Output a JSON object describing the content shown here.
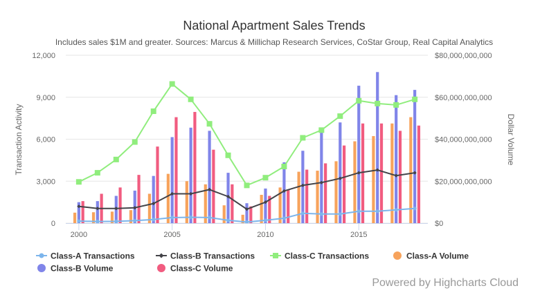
{
  "chart_data": {
    "type": "bar",
    "title": "National Apartment Sales Trends",
    "subtitle": "Includes sales $1M and greater. Sources: Marcus & Millichap Research Services, CoStar Group, Real Capital Analytics",
    "x": [
      2000,
      2001,
      2002,
      2003,
      2004,
      2005,
      2006,
      2007,
      2008,
      2009,
      2010,
      2011,
      2012,
      2013,
      2014,
      2015,
      2016,
      2017,
      2018
    ],
    "x_ticks": [
      "2000",
      "2005",
      "2010",
      "2015"
    ],
    "x_tick_values": [
      2000,
      2005,
      2010,
      2015
    ],
    "xlim": [
      1999.3,
      2018.7
    ],
    "y_left": {
      "label": "Transaction Activity",
      "ylim": [
        0,
        12000
      ],
      "ticks": [
        0,
        3000,
        6000,
        9000,
        12000
      ],
      "tick_labels": [
        "0",
        "3,000",
        "6,000",
        "9,000",
        "12,000"
      ]
    },
    "y_right": {
      "label": "Dollar Volume",
      "ylim": [
        0,
        80000000000
      ],
      "ticks": [
        0,
        20000000000,
        40000000000,
        60000000000,
        80000000000
      ],
      "tick_labels": [
        "$0",
        "$20,000,000,000",
        "$40,000,000,000",
        "$60,000,000,000",
        "$80,000,000,000"
      ]
    },
    "series": [
      {
        "name": "Class-A Transactions",
        "kind": "line",
        "axis": "left",
        "marker": "circle",
        "color": "#7cb5ec",
        "values": [
          150,
          120,
          130,
          180,
          260,
          400,
          420,
          400,
          200,
          80,
          200,
          350,
          700,
          650,
          650,
          850,
          850,
          950,
          1050
        ]
      },
      {
        "name": "Class-B Transactions",
        "kind": "line",
        "axis": "left",
        "marker": "diamond",
        "color": "#434348",
        "values": [
          1200,
          1050,
          1050,
          1100,
          1400,
          2100,
          2100,
          2400,
          1900,
          1000,
          1500,
          2300,
          2700,
          2900,
          3200,
          3600,
          3800,
          3400,
          3600
        ]
      },
      {
        "name": "Class-C Transactions",
        "kind": "line",
        "axis": "left",
        "marker": "square",
        "color": "#90ed7d",
        "values": [
          2950,
          3600,
          4550,
          5800,
          8000,
          9950,
          8850,
          7100,
          4850,
          2700,
          3250,
          4050,
          6100,
          6650,
          7650,
          8750,
          8550,
          8450,
          8850
        ]
      },
      {
        "name": "Class-A Volume",
        "kind": "column",
        "axis": "right",
        "marker": "circle",
        "color": "#f7a35c",
        "values": [
          5000000000,
          5200000000,
          5500000000,
          6200000000,
          14000000000,
          23500000000,
          20000000000,
          18500000000,
          8500000000,
          4000000000,
          13500000000,
          17000000000,
          24500000000,
          25000000000,
          29500000000,
          39000000000,
          41500000000,
          47500000000,
          50500000000
        ]
      },
      {
        "name": "Class-B Volume",
        "kind": "column",
        "axis": "right",
        "marker": "circle",
        "color": "#8085e9",
        "values": [
          10000000000,
          10500000000,
          13000000000,
          15500000000,
          22500000000,
          41000000000,
          45500000000,
          44000000000,
          24000000000,
          9500000000,
          16500000000,
          29000000000,
          34500000000,
          45500000000,
          48000000000,
          65500000000,
          72000000000,
          61000000000,
          63500000000
        ]
      },
      {
        "name": "Class-C Volume",
        "kind": "column",
        "axis": "right",
        "marker": "circle",
        "color": "#f15c80",
        "values": [
          10500000000,
          14000000000,
          17000000000,
          23000000000,
          36500000000,
          50500000000,
          53000000000,
          35000000000,
          18500000000,
          8000000000,
          13000000000,
          16000000000,
          25500000000,
          28500000000,
          37000000000,
          47500000000,
          47500000000,
          44000000000,
          46500000000
        ]
      }
    ],
    "grid": true,
    "legend_position": "bottom",
    "credits": "Powered by Highcharts Cloud"
  }
}
